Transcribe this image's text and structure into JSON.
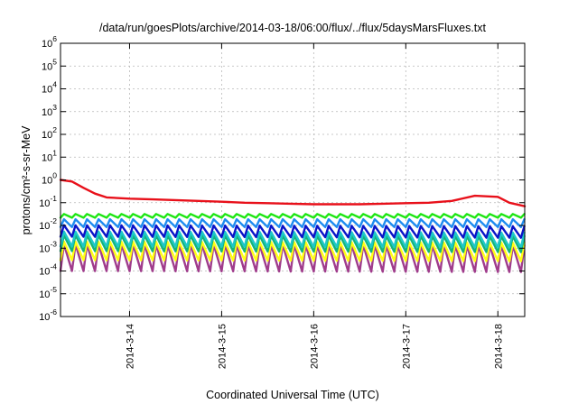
{
  "chart_data": {
    "type": "line",
    "title": "/data/run/goesPlots/archive/2014-03-18/06:00/flux/../flux/5daysMarsFluxes.txt",
    "xlabel": "Coordinated Universal Time (UTC)",
    "ylabel": "protons/cm²-s-sr-MeV",
    "yscale": "log",
    "ylim": [
      1e-06,
      1000000
    ],
    "xlim": [
      "2014-03-13 06:00",
      "2014-03-18 07:00"
    ],
    "yticks": [
      {
        "base": "10",
        "exp": "-6"
      },
      {
        "base": "10",
        "exp": "-5"
      },
      {
        "base": "10",
        "exp": "-4"
      },
      {
        "base": "10",
        "exp": "-3"
      },
      {
        "base": "10",
        "exp": "-2"
      },
      {
        "base": "10",
        "exp": "-1"
      },
      {
        "base": "10",
        "exp": "0"
      },
      {
        "base": "10",
        "exp": "1"
      },
      {
        "base": "10",
        "exp": "2"
      },
      {
        "base": "10",
        "exp": "3"
      },
      {
        "base": "10",
        "exp": "4"
      },
      {
        "base": "10",
        "exp": "5"
      },
      {
        "base": "10",
        "exp": "6"
      }
    ],
    "xticks": [
      {
        "date": "2014-03-14 00:00",
        "label": "2014-3-14"
      },
      {
        "date": "2014-03-15 00:00",
        "label": "2014-3-15"
      },
      {
        "date": "2014-03-16 00:00",
        "label": "2014-3-16"
      },
      {
        "date": "2014-03-17 00:00",
        "label": "2014-3-17"
      },
      {
        "date": "2014-03-18 00:00",
        "label": "2014-3-18"
      }
    ],
    "grid": true,
    "legend": "none",
    "series": [
      {
        "color": "#e8101a",
        "x": [
          "2014-03-13 06:00",
          "2014-03-13 09:00",
          "2014-03-13 12:00",
          "2014-03-13 15:00",
          "2014-03-13 18:00",
          "2014-03-14 00:00",
          "2014-03-14 06:00",
          "2014-03-14 12:00",
          "2014-03-14 18:00",
          "2014-03-15 00:00",
          "2014-03-15 06:00",
          "2014-03-15 12:00",
          "2014-03-15 18:00",
          "2014-03-16 00:00",
          "2014-03-16 06:00",
          "2014-03-16 12:00",
          "2014-03-16 18:00",
          "2014-03-17 00:00",
          "2014-03-17 06:00",
          "2014-03-17 12:00",
          "2014-03-17 18:00",
          "2014-03-18 00:00",
          "2014-03-18 03:00",
          "2014-03-18 07:00"
        ],
        "y": [
          1.0,
          0.85,
          0.45,
          0.25,
          0.17,
          0.15,
          0.14,
          0.13,
          0.12,
          0.11,
          0.1,
          0.095,
          0.09,
          0.085,
          0.085,
          0.085,
          0.09,
          0.095,
          0.1,
          0.12,
          0.2,
          0.18,
          0.1,
          0.07
        ]
      },
      {
        "color": "#1ee614",
        "base": 0.022,
        "ratio": 1.45,
        "slope": 0.0
      },
      {
        "color": "#1e8cf0",
        "base": 0.0085,
        "ratio": 2.2,
        "slope": 0.0
      },
      {
        "color": "#0a14c8",
        "base": 0.0032,
        "ratio": 3.2,
        "slope": -0.02
      },
      {
        "color": "#1ec8c8",
        "base": 0.0012,
        "ratio": 4.5,
        "slope": -0.02
      },
      {
        "color": "#14b478",
        "base": 0.00075,
        "ratio": 5.0,
        "slope": -0.02
      },
      {
        "color": "#ffff14",
        "base": 0.0003,
        "ratio": 6.5,
        "slope": -0.02
      },
      {
        "color": "#a03c8c",
        "base": 0.0001,
        "ratio": 15.0,
        "slope": -0.02
      }
    ],
    "sawtooth_period_hours": 3
  }
}
